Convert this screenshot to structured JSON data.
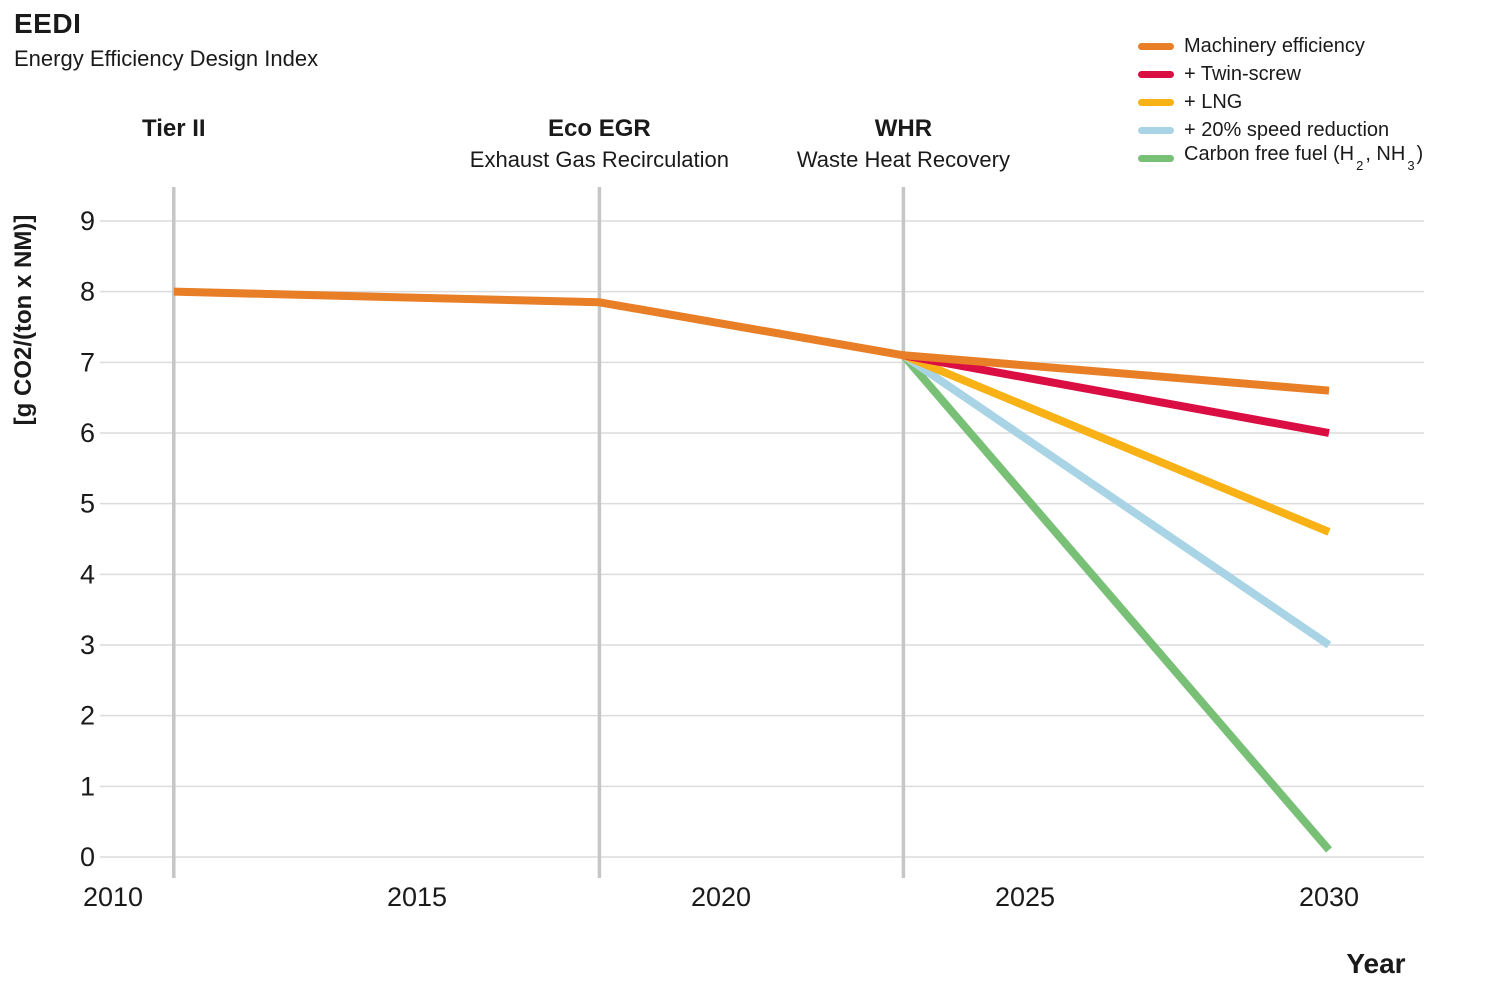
{
  "title": "EEDI",
  "subtitle": "Energy Efficiency Design Index",
  "colors": {
    "background": "#FFFFFF",
    "text": "#1A1A1A",
    "gridline": "#DCDCDC",
    "event_line": "#C5C6C6",
    "machinery_efficiency": "#E87E26",
    "twin_screw": "#DB0E44",
    "lng": "#F8B215",
    "speed_reduction": "#A8D4E5",
    "carbon_free_fuel": "#79C077"
  },
  "legend": {
    "position": "top-right",
    "items": [
      {
        "color": "#E87E26",
        "parts": [
          {
            "text": "Machinery efficiency"
          }
        ]
      },
      {
        "color": "#DB0E44",
        "parts": [
          {
            "text": "+ Twin-screw"
          }
        ]
      },
      {
        "color": "#F8B215",
        "parts": [
          {
            "text": "+ LNG"
          }
        ]
      },
      {
        "color": "#A8D4E5",
        "parts": [
          {
            "text": "+ 20% speed reduction"
          }
        ]
      },
      {
        "color": "#79C077",
        "parts": [
          {
            "text": "Carbon free fuel (H"
          },
          {
            "text": "2",
            "sub": true
          },
          {
            "text": ", NH"
          },
          {
            "text": "3",
            "sub": true
          },
          {
            "text": ")"
          }
        ]
      }
    ]
  },
  "chart_data": {
    "type": "line",
    "title": "EEDI",
    "subtitle": "Energy Efficiency Design Index",
    "xlabel": "Year",
    "ylabel": "[g CO2/(ton x NM)]",
    "x_ticks": [
      2010,
      2015,
      2020,
      2025,
      2030
    ],
    "y_ticks": [
      0,
      1,
      2,
      3,
      4,
      5,
      6,
      7,
      8,
      9
    ],
    "xlim": [
      2009.8,
      2031.6
    ],
    "ylim": [
      0,
      9.5
    ],
    "grid": "horizontal",
    "legend_position": "top-right",
    "event_lines": [
      {
        "year": 2011,
        "label": "Tier II",
        "sublabel": ""
      },
      {
        "year": 2018,
        "label": "Eco EGR",
        "sublabel": "Exhaust Gas Recirculation"
      },
      {
        "year": 2023,
        "label": "WHR",
        "sublabel": "Waste Heat Recovery"
      }
    ],
    "series": [
      {
        "name": "Machinery efficiency",
        "color": "#E87E26",
        "points": [
          [
            2011,
            8.0
          ],
          [
            2018,
            7.85
          ],
          [
            2023,
            7.1
          ],
          [
            2030,
            6.6
          ]
        ]
      },
      {
        "name": "+ Twin-screw",
        "color": "#DB0E44",
        "points": [
          [
            2023,
            7.1
          ],
          [
            2030,
            6.0
          ]
        ]
      },
      {
        "name": "+ LNG",
        "color": "#F8B215",
        "points": [
          [
            2023,
            7.1
          ],
          [
            2030,
            4.6
          ]
        ]
      },
      {
        "name": "+ 20% speed reduction",
        "color": "#A8D4E5",
        "points": [
          [
            2023,
            7.1
          ],
          [
            2030,
            3.0
          ]
        ]
      },
      {
        "name": "Carbon free fuel (H2, NH3)",
        "color": "#79C077",
        "points": [
          [
            2023,
            7.1
          ],
          [
            2030,
            0.1
          ]
        ]
      }
    ]
  }
}
